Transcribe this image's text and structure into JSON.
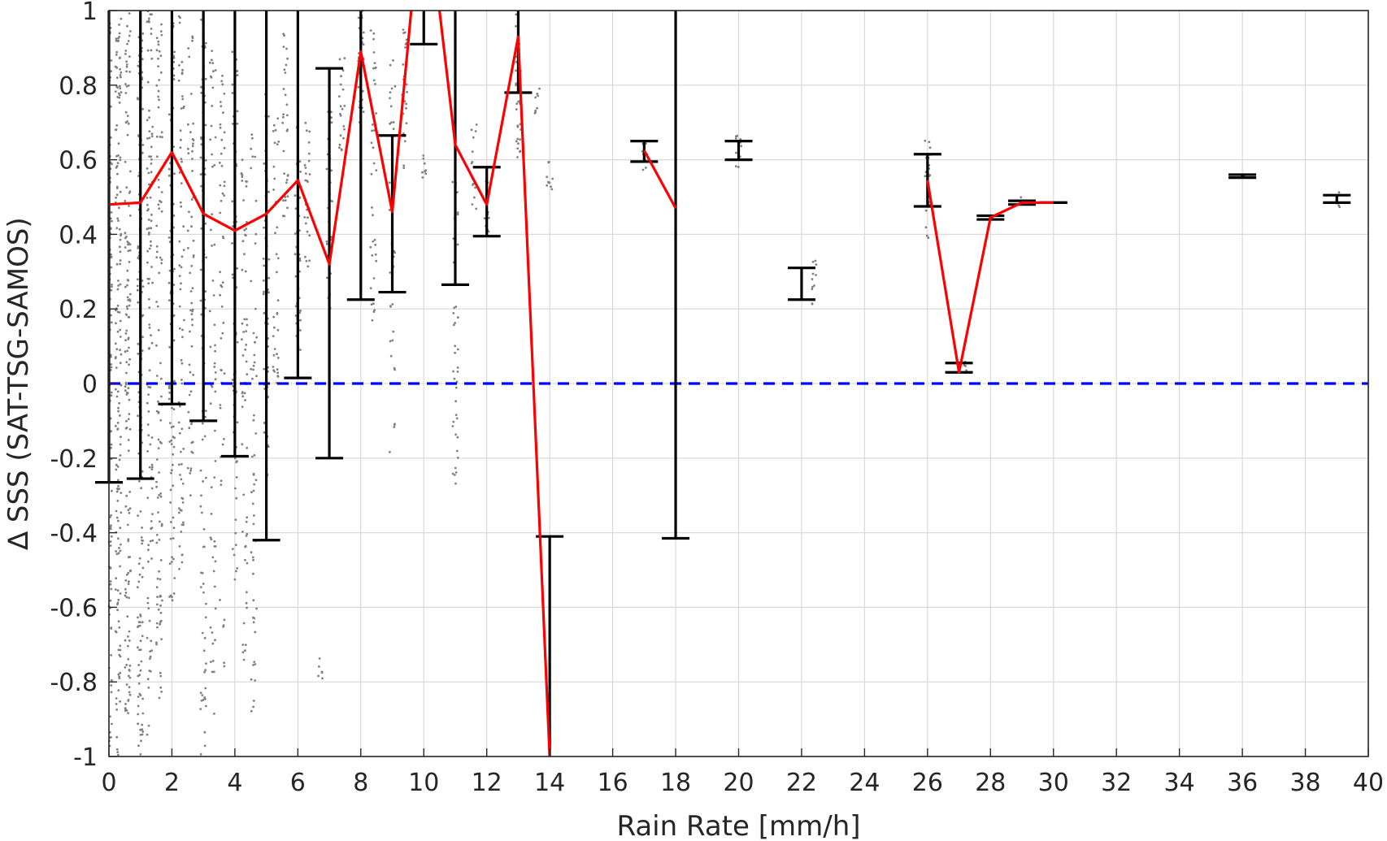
{
  "chart_data": {
    "type": "scatter",
    "title": "",
    "xlabel": "Rain Rate [mm/h]",
    "ylabel": "∆ SSS (SAT-TSG-SAMOS)",
    "xlim": [
      0,
      40
    ],
    "ylim": [
      -1,
      1
    ],
    "xticks": [
      0,
      2,
      4,
      6,
      8,
      10,
      12,
      14,
      16,
      18,
      20,
      22,
      24,
      26,
      28,
      30,
      32,
      34,
      36,
      38,
      40
    ],
    "yticks": [
      -1,
      -0.8,
      -0.6,
      -0.4,
      -0.2,
      0,
      0.2,
      0.4,
      0.6,
      0.8,
      1
    ],
    "ytick_labels": [
      "-1",
      "-0.8",
      "-0.6",
      "-0.4",
      "-0.2",
      "0",
      "0.2",
      "0.4",
      "0.6",
      "0.8",
      "1"
    ],
    "grid": true,
    "colors": {
      "scatter": "#808080",
      "mean_line": "#ff0000",
      "error_bars": "#000000",
      "zero_line": "#0000ff",
      "grid": "#d9d9d9",
      "axes": "#262626"
    },
    "scatter_columns": [
      {
        "x": 0.0,
        "ymin": -1.0,
        "ymax": 1.0,
        "count": 200
      },
      {
        "x": 0.3,
        "ymin": -1.0,
        "ymax": 1.0,
        "count": 160
      },
      {
        "x": 0.6,
        "ymin": -0.9,
        "ymax": 1.0,
        "count": 140
      },
      {
        "x": 1.0,
        "ymin": -1.0,
        "ymax": 1.0,
        "count": 140
      },
      {
        "x": 1.3,
        "ymin": -0.95,
        "ymax": 1.0,
        "count": 110
      },
      {
        "x": 1.6,
        "ymin": -0.9,
        "ymax": 1.0,
        "count": 100
      },
      {
        "x": 2.0,
        "ymin": -0.6,
        "ymax": 1.0,
        "count": 90
      },
      {
        "x": 2.3,
        "ymin": -0.5,
        "ymax": 1.0,
        "count": 70
      },
      {
        "x": 2.6,
        "ymin": -0.3,
        "ymax": 0.95,
        "count": 60
      },
      {
        "x": 3.0,
        "ymin": -1.0,
        "ymax": 1.0,
        "count": 90
      },
      {
        "x": 3.3,
        "ymin": -0.9,
        "ymax": 0.9,
        "count": 60
      },
      {
        "x": 3.6,
        "ymin": -0.8,
        "ymax": 0.85,
        "count": 50
      },
      {
        "x": 4.0,
        "ymin": -0.55,
        "ymax": 0.9,
        "count": 70
      },
      {
        "x": 4.3,
        "ymin": -0.75,
        "ymax": 0.6,
        "count": 60
      },
      {
        "x": 4.6,
        "ymin": -0.9,
        "ymax": 0.7,
        "count": 55
      },
      {
        "x": 5.0,
        "ymin": -0.35,
        "ymax": 0.8,
        "count": 50
      },
      {
        "x": 5.3,
        "ymin": 0.0,
        "ymax": 0.75,
        "count": 35
      },
      {
        "x": 5.6,
        "ymin": 0.4,
        "ymax": 0.95,
        "count": 30
      },
      {
        "x": 6.0,
        "ymin": 0.05,
        "ymax": 0.8,
        "count": 40
      },
      {
        "x": 6.3,
        "ymin": 0.3,
        "ymax": 0.7,
        "count": 25
      },
      {
        "x": 6.7,
        "ymin": -0.8,
        "ymax": -0.72,
        "count": 6
      },
      {
        "x": 7.0,
        "ymin": 0.2,
        "ymax": 0.75,
        "count": 30
      },
      {
        "x": 7.4,
        "ymin": 0.6,
        "ymax": 0.9,
        "count": 20
      },
      {
        "x": 8.0,
        "ymin": 0.7,
        "ymax": 1.0,
        "count": 30
      },
      {
        "x": 8.4,
        "ymin": 0.15,
        "ymax": 0.95,
        "count": 35
      },
      {
        "x": 9.0,
        "ymin": -0.25,
        "ymax": 0.9,
        "count": 35
      },
      {
        "x": 9.4,
        "ymin": 0.55,
        "ymax": 0.95,
        "count": 25
      },
      {
        "x": 10.0,
        "ymin": 0.55,
        "ymax": 0.65,
        "count": 8
      },
      {
        "x": 11.0,
        "ymin": -0.28,
        "ymax": 0.6,
        "count": 40
      },
      {
        "x": 11.6,
        "ymin": 0.45,
        "ymax": 0.7,
        "count": 15
      },
      {
        "x": 12.0,
        "ymin": 0.4,
        "ymax": 0.55,
        "count": 12
      },
      {
        "x": 13.0,
        "ymin": 0.6,
        "ymax": 1.0,
        "count": 35
      },
      {
        "x": 13.6,
        "ymin": 0.72,
        "ymax": 0.8,
        "count": 8
      },
      {
        "x": 14.0,
        "ymin": 0.52,
        "ymax": 0.63,
        "count": 10
      },
      {
        "x": 17.0,
        "ymin": 0.56,
        "ymax": 0.65,
        "count": 10
      },
      {
        "x": 20.0,
        "ymin": 0.58,
        "ymax": 0.67,
        "count": 10
      },
      {
        "x": 22.4,
        "ymin": 0.21,
        "ymax": 0.33,
        "count": 12
      },
      {
        "x": 26.0,
        "ymin": 0.39,
        "ymax": 0.67,
        "count": 25
      },
      {
        "x": 27.2,
        "ymin": 0.03,
        "ymax": 0.06,
        "count": 6
      },
      {
        "x": 28.0,
        "ymin": 0.44,
        "ymax": 0.45,
        "count": 4
      },
      {
        "x": 29.0,
        "ymin": 0.48,
        "ymax": 0.5,
        "count": 4
      },
      {
        "x": 36.0,
        "ymin": 0.55,
        "ymax": 0.56,
        "count": 4
      },
      {
        "x": 39.0,
        "ymin": 0.47,
        "ymax": 0.52,
        "count": 6
      }
    ],
    "series": [
      {
        "type": "line",
        "color": "#ff0000",
        "segments": [
          [
            [
              0,
              0.48
            ],
            [
              1,
              0.485
            ],
            [
              2,
              0.62
            ],
            [
              3,
              0.455
            ],
            [
              4,
              0.41
            ],
            [
              5,
              0.455
            ],
            [
              6,
              0.545
            ],
            [
              7,
              0.32
            ],
            [
              8,
              0.89
            ],
            [
              9,
              0.46
            ],
            [
              9.6,
              1.0
            ]
          ],
          [
            [
              10.5,
              1.0
            ],
            [
              11,
              0.64
            ],
            [
              12,
              0.48
            ],
            [
              13,
              0.93
            ],
            [
              14,
              -1.0
            ]
          ],
          [
            [
              17,
              0.625
            ],
            [
              18,
              0.47
            ]
          ],
          [
            [
              26,
              0.545
            ],
            [
              27,
              0.03
            ],
            [
              28,
              0.445
            ],
            [
              29,
              0.485
            ],
            [
              30,
              0.485
            ]
          ]
        ]
      },
      {
        "type": "errorbar",
        "color": "#000000",
        "points": [
          {
            "x": 0,
            "low": -0.265,
            "high": 1.0
          },
          {
            "x": 1,
            "low": -0.255,
            "high": 1.0
          },
          {
            "x": 2,
            "low": -0.055,
            "high": 1.0
          },
          {
            "x": 3,
            "low": -0.1,
            "high": 1.0
          },
          {
            "x": 4,
            "low": -0.195,
            "high": 1.0
          },
          {
            "x": 5,
            "low": -0.42,
            "high": 1.0
          },
          {
            "x": 6,
            "low": 0.015,
            "high": 1.0
          },
          {
            "x": 7,
            "low": -0.2,
            "high": 0.845
          },
          {
            "x": 8,
            "low": 0.225,
            "high": 1.0
          },
          {
            "x": 9,
            "low": 0.245,
            "high": 0.665
          },
          {
            "x": 10,
            "low": 0.91,
            "high": 1.0
          },
          {
            "x": 11,
            "low": 0.265,
            "high": 1.0
          },
          {
            "x": 12,
            "low": 0.395,
            "high": 0.58
          },
          {
            "x": 13,
            "low": 0.78,
            "high": 1.0
          },
          {
            "x": 14,
            "low": -1.0,
            "high": -0.41
          },
          {
            "x": 17,
            "low": 0.595,
            "high": 0.65
          },
          {
            "x": 18,
            "low": -0.415,
            "high": 1.0
          },
          {
            "x": 20,
            "low": 0.6,
            "high": 0.65
          },
          {
            "x": 22,
            "low": 0.225,
            "high": 0.31
          },
          {
            "x": 26,
            "low": 0.475,
            "high": 0.615
          },
          {
            "x": 27,
            "low": 0.03,
            "high": 0.055
          },
          {
            "x": 28,
            "low": 0.44,
            "high": 0.45
          },
          {
            "x": 29,
            "low": 0.48,
            "high": 0.49
          },
          {
            "x": 30,
            "low": 0.485,
            "high": 0.485
          },
          {
            "x": 36,
            "low": 0.552,
            "high": 0.56
          },
          {
            "x": 39,
            "low": 0.485,
            "high": 0.505
          }
        ]
      }
    ],
    "reference_line": {
      "y": 0,
      "style": "dashed",
      "color": "#0000ff"
    }
  }
}
